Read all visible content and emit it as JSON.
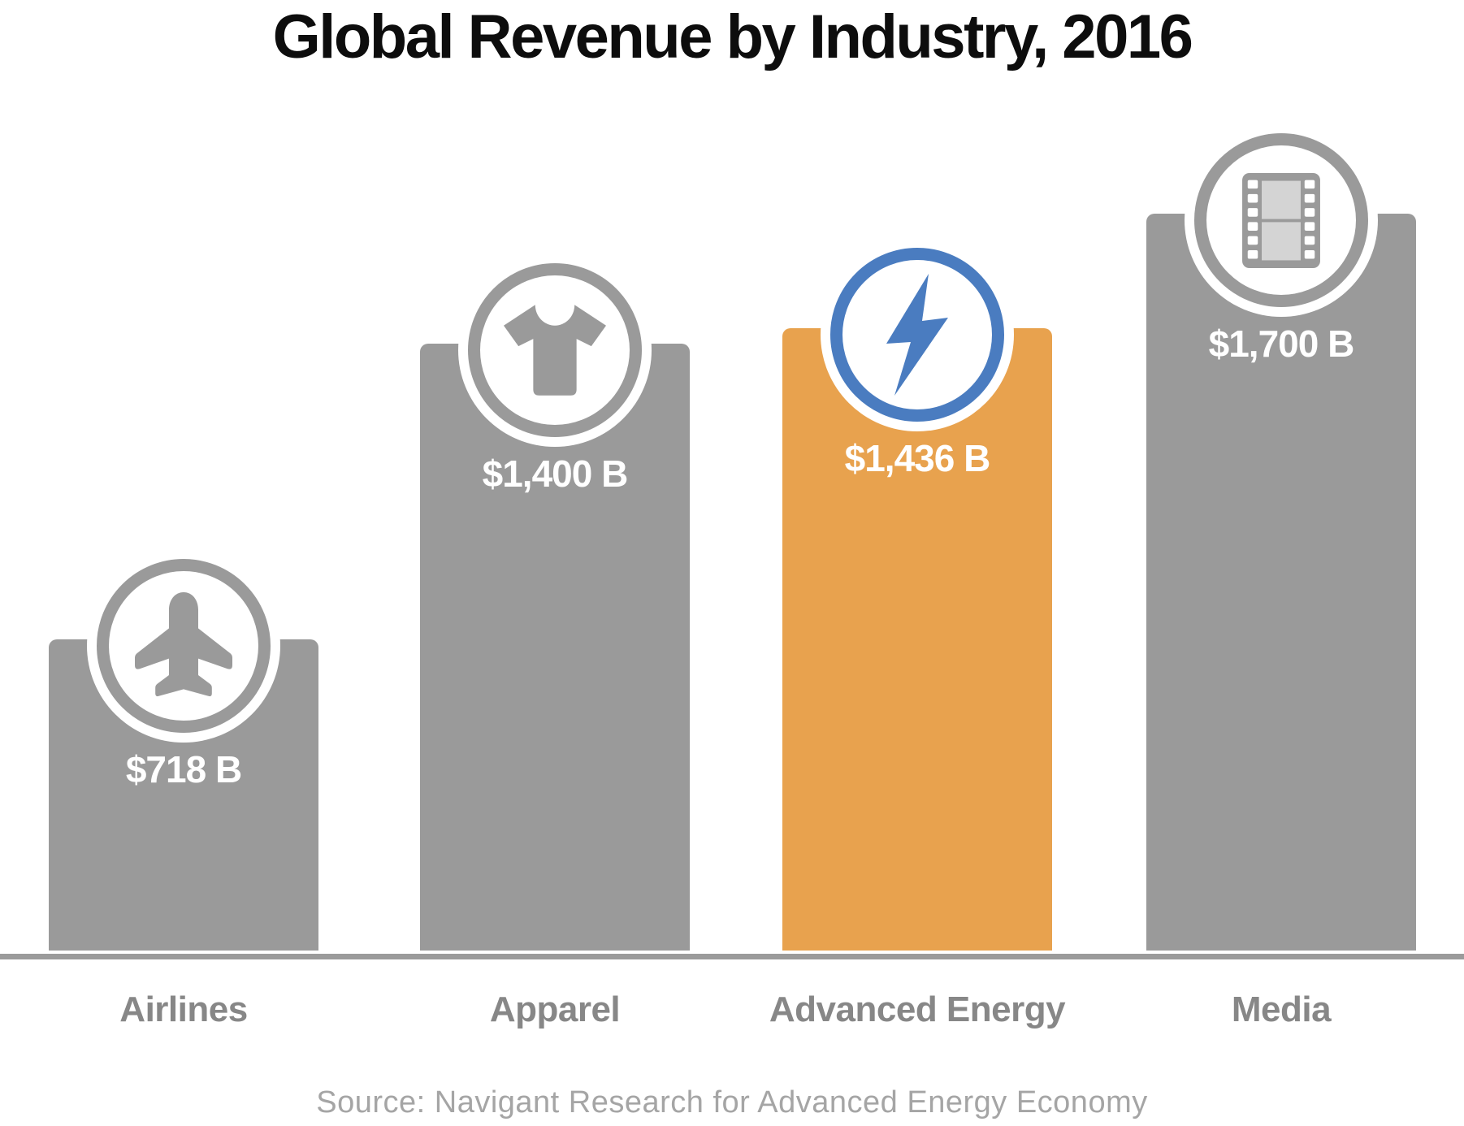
{
  "chart_data": {
    "type": "bar",
    "title": "Global Revenue by Industry, 2016",
    "categories": [
      "Airlines",
      "Apparel",
      "Advanced Energy",
      "Media"
    ],
    "values": [
      718,
      1400,
      1436,
      1700
    ],
    "value_labels": [
      "$718 B",
      "$1,400 B",
      "$1,436 B",
      "$1,700 B"
    ],
    "unit": "$B",
    "highlight_index": 2,
    "icons": [
      "airplane-icon",
      "tshirt-icon",
      "lightning-icon",
      "film-icon"
    ],
    "legend_position": "none",
    "grid": false,
    "source": "Source: Navigant Research for Advanced Energy Economy",
    "colors": {
      "bar": "#9A9A9A",
      "highlight_bar": "#E8A24E",
      "icon_gray": "#9A9A9A",
      "icon_accent_blue": "#4A7CC0",
      "film_frame_light": "#D4D4D4",
      "value_text": "#FFFFFF",
      "category_text": "#878787",
      "axis_line": "#9B9B9B",
      "title_text": "#0D0D0D",
      "source_text": "#A5A5A5"
    }
  }
}
